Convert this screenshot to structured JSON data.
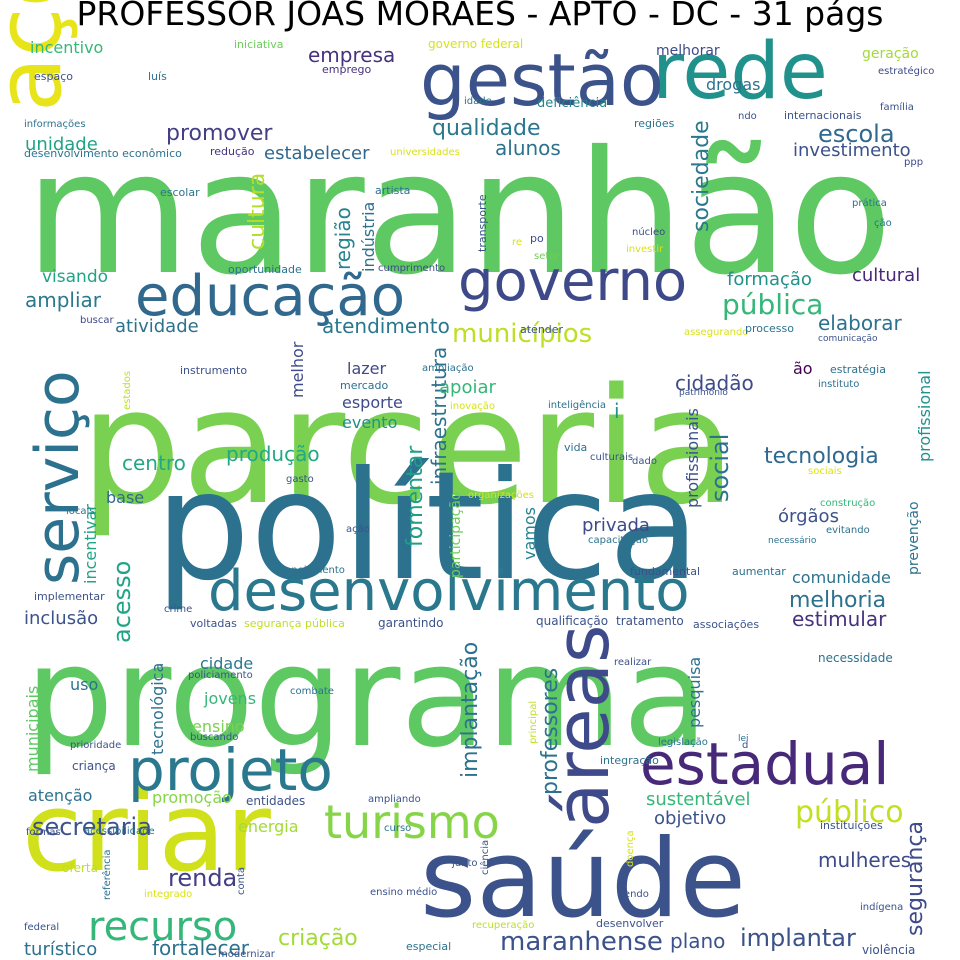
{
  "title": "PROFESSOR JOAS MORAES - APTO - DC - 31 págs",
  "words": [
    {
      "text": "maranhão",
      "color": "#5ec962"
    },
    {
      "text": "parceria",
      "color": "#7ad151"
    },
    {
      "text": "política",
      "color": "#2c728e"
    },
    {
      "text": "programa",
      "color": "#5ec962"
    },
    {
      "text": "saúde",
      "color": "#3b528b"
    },
    {
      "text": "criar",
      "color": "#d0e11c"
    },
    {
      "text": "ações",
      "color": "#e7e419"
    },
    {
      "text": "rede",
      "color": "#21918c"
    },
    {
      "text": "gestão",
      "color": "#3b528b"
    },
    {
      "text": "educação",
      "color": "#31688e"
    },
    {
      "text": "governo",
      "color": "#3e4989"
    },
    {
      "text": "desenvolvimento",
      "color": "#2a788e"
    },
    {
      "text": "serviço",
      "color": "#2c728e"
    },
    {
      "text": "áreas",
      "color": "#3e4a89"
    },
    {
      "text": "projeto",
      "color": "#2a788e"
    },
    {
      "text": "estadual",
      "color": "#482878"
    },
    {
      "text": "turismo",
      "color": "#86d549"
    },
    {
      "text": "recurso",
      "color": "#35b779"
    },
    {
      "text": "público",
      "color": "#c2df23"
    },
    {
      "text": "municípios",
      "color": "#bddf26"
    },
    {
      "text": "pública",
      "color": "#35b779"
    },
    {
      "text": "qualidade",
      "color": "#2a788e"
    },
    {
      "text": "escola",
      "color": "#31688e"
    },
    {
      "text": "promover",
      "color": "#433e85"
    },
    {
      "text": "alunos",
      "color": "#2c728e"
    },
    {
      "text": "empresa",
      "color": "#46327e"
    },
    {
      "text": "melhorar",
      "color": "#3e4a89"
    },
    {
      "text": "drogas",
      "color": "#2c728e"
    },
    {
      "text": "deficiência",
      "color": "#25848e"
    },
    {
      "text": "geração",
      "color": "#a2da37"
    },
    {
      "text": "sociedade",
      "color": "#2a788e"
    },
    {
      "text": "cultura",
      "color": "#b5de2b"
    },
    {
      "text": "região",
      "color": "#25848e"
    },
    {
      "text": "indústria",
      "color": "#2c728e"
    },
    {
      "text": "estabelecer",
      "color": "#31688e"
    },
    {
      "text": "investimento",
      "color": "#3b528b"
    },
    {
      "text": "unidade",
      "color": "#20a486"
    },
    {
      "text": "incentivo",
      "color": "#35b779"
    },
    {
      "text": "visando",
      "color": "#20a486"
    },
    {
      "text": "ampliar",
      "color": "#2a788e"
    },
    {
      "text": "atividade",
      "color": "#2c728e"
    },
    {
      "text": "atendimento",
      "color": "#2a788e"
    },
    {
      "text": "formação",
      "color": "#21918c"
    },
    {
      "text": "cultural",
      "color": "#482878"
    },
    {
      "text": "elaborar",
      "color": "#2c728e"
    },
    {
      "text": "cidadão",
      "color": "#3e4a89"
    },
    {
      "text": "tecnologia",
      "color": "#31688e"
    },
    {
      "text": "social",
      "color": "#2c728e"
    },
    {
      "text": "produção",
      "color": "#22a884"
    },
    {
      "text": "centro",
      "color": "#22a884"
    },
    {
      "text": "fomentar",
      "color": "#1f9e89"
    },
    {
      "text": "infraestrutura",
      "color": "#2c728e"
    },
    {
      "text": "comunidade",
      "color": "#2c728e"
    },
    {
      "text": "melhoria",
      "color": "#2c728e"
    },
    {
      "text": "estimular",
      "color": "#46327e"
    },
    {
      "text": "acesso",
      "color": "#20a486"
    },
    {
      "text": "inclusão",
      "color": "#3b528b"
    },
    {
      "text": "privada",
      "color": "#3e4a89"
    },
    {
      "text": "órgãos",
      "color": "#3b528b"
    },
    {
      "text": "secretaria",
      "color": "#3b528b"
    },
    {
      "text": "renda",
      "color": "#433e85"
    },
    {
      "text": "maranhense",
      "color": "#3b528b"
    },
    {
      "text": "implantar",
      "color": "#3b528b"
    },
    {
      "text": "plano",
      "color": "#3b528b"
    },
    {
      "text": "criação",
      "color": "#a2da37"
    },
    {
      "text": "fortalecer",
      "color": "#2c728e"
    },
    {
      "text": "turístico",
      "color": "#2c728e"
    },
    {
      "text": "mulheres",
      "color": "#3e4a89"
    },
    {
      "text": "segurança",
      "color": "#3e4a89"
    },
    {
      "text": "objetivo",
      "color": "#3b528b"
    },
    {
      "text": "sustentável",
      "color": "#35b779"
    },
    {
      "text": "energia",
      "color": "#a2da37"
    },
    {
      "text": "atenção",
      "color": "#2c728e"
    },
    {
      "text": "promoção",
      "color": "#86d549"
    },
    {
      "text": "jovens",
      "color": "#35b779"
    },
    {
      "text": "cidade",
      "color": "#2a788e"
    },
    {
      "text": "ensino",
      "color": "#7ad151"
    },
    {
      "text": "uso",
      "color": "#2c728e"
    },
    {
      "text": "pesquisa",
      "color": "#2c728e"
    },
    {
      "text": "implantação",
      "color": "#2c728e"
    },
    {
      "text": "professores",
      "color": "#2c728e"
    },
    {
      "text": "base",
      "color": "#31688e"
    },
    {
      "text": "incentivar",
      "color": "#20a486"
    },
    {
      "text": "lazer",
      "color": "#3e4a89"
    },
    {
      "text": "esporte",
      "color": "#3e4a89"
    },
    {
      "text": "evento",
      "color": "#21918c"
    },
    {
      "text": "apoiar",
      "color": "#35b779"
    },
    {
      "text": "vamos",
      "color": "#25848e"
    },
    {
      "text": "profissionais",
      "color": "#3b528b"
    },
    {
      "text": "profissional",
      "color": "#21918c"
    },
    {
      "text": "prevenção",
      "color": "#2c728e"
    },
    {
      "text": "municipais",
      "color": "#5ec962"
    },
    {
      "text": "tecnológica",
      "color": "#2c728e"
    },
    {
      "text": "melhor",
      "color": "#3e4a89"
    },
    {
      "text": "i",
      "color": "#21918c"
    },
    {
      "text": "ão",
      "color": "#440154"
    },
    {
      "text": "participação",
      "color": "#6ccd5a"
    },
    {
      "text": "espaço",
      "color": "#3b528b"
    },
    {
      "text": "luís",
      "color": "#2c728e"
    },
    {
      "text": "iniciativa",
      "color": "#6ccd5a"
    },
    {
      "text": "emprego",
      "color": "#46327e"
    },
    {
      "text": "governo federal",
      "color": "#d8e219"
    },
    {
      "text": "estratégico",
      "color": "#3e4a89"
    },
    {
      "text": "família",
      "color": "#3b528b"
    },
    {
      "text": "internacionais",
      "color": "#3b528b"
    },
    {
      "text": "ndo",
      "color": "#3b528b"
    },
    {
      "text": "idade",
      "color": "#2c728e"
    },
    {
      "text": "regiões",
      "color": "#2c728e"
    },
    {
      "text": "informações",
      "color": "#2c728e"
    },
    {
      "text": "redução",
      "color": "#46327e"
    },
    {
      "text": "desenvolvimento econômico",
      "color": "#2c728e"
    },
    {
      "text": "universidades",
      "color": "#d8e219"
    },
    {
      "text": "ppp",
      "color": "#3e4a89"
    },
    {
      "text": "escolar",
      "color": "#2c728e"
    },
    {
      "text": "artista",
      "color": "#2c728e"
    },
    {
      "text": "prática",
      "color": "#2c728e"
    },
    {
      "text": "ção",
      "color": "#2c728e"
    },
    {
      "text": "transporte",
      "color": "#3b528b"
    },
    {
      "text": "núcleo",
      "color": "#3e4a89"
    },
    {
      "text": "re",
      "color": "#d8e219"
    },
    {
      "text": "po",
      "color": "#3e4a89"
    },
    {
      "text": "setor",
      "color": "#6ccd5a"
    },
    {
      "text": "investir",
      "color": "#d8e219"
    },
    {
      "text": "oportunidade",
      "color": "#2c728e"
    },
    {
      "text": "cumprimento",
      "color": "#3e4a89"
    },
    {
      "text": "buscar",
      "color": "#3e4a89"
    },
    {
      "text": "atender",
      "color": "#3b528b"
    },
    {
      "text": "assegurando",
      "color": "#d8e219"
    },
    {
      "text": "processo",
      "color": "#2c728e"
    },
    {
      "text": "comunicação",
      "color": "#3b528b"
    },
    {
      "text": "instrumento",
      "color": "#3b528b"
    },
    {
      "text": "ampliação",
      "color": "#2c728e"
    },
    {
      "text": "estratégia",
      "color": "#2c728e"
    },
    {
      "text": "instituto",
      "color": "#2c728e"
    },
    {
      "text": "estados",
      "color": "#bddf26"
    },
    {
      "text": "mercado",
      "color": "#2c728e"
    },
    {
      "text": "patrimônio",
      "color": "#3b528b"
    },
    {
      "text": "inovação",
      "color": "#d8e219"
    },
    {
      "text": "inteligência",
      "color": "#2c728e"
    },
    {
      "text": "vida",
      "color": "#2c728e"
    },
    {
      "text": "culturais",
      "color": "#3b528b"
    },
    {
      "text": "dado",
      "color": "#3b528b"
    },
    {
      "text": "sociais",
      "color": "#d8e219"
    },
    {
      "text": "gasto",
      "color": "#3b528b"
    },
    {
      "text": "organizações",
      "color": "#d8e219"
    },
    {
      "text": "locais",
      "color": "#2c728e"
    },
    {
      "text": "construção",
      "color": "#35b779"
    },
    {
      "text": "evitando",
      "color": "#2c728e"
    },
    {
      "text": "ação",
      "color": "#3b528b"
    },
    {
      "text": "capacitação",
      "color": "#2c728e"
    },
    {
      "text": "necessário",
      "color": "#2c728e"
    },
    {
      "text": "planejamento",
      "color": "#2c728e"
    },
    {
      "text": "fundamental",
      "color": "#3b528b"
    },
    {
      "text": "aumentar",
      "color": "#2c728e"
    },
    {
      "text": "implementar",
      "color": "#3b528b"
    },
    {
      "text": "crime",
      "color": "#3b528b"
    },
    {
      "text": "voltadas",
      "color": "#3b528b"
    },
    {
      "text": "segurança pública",
      "color": "#bddf26"
    },
    {
      "text": "garantindo",
      "color": "#3b528b"
    },
    {
      "text": "qualificação",
      "color": "#3b528b"
    },
    {
      "text": "tratamento",
      "color": "#3b528b"
    },
    {
      "text": "associações",
      "color": "#3b528b"
    },
    {
      "text": "policiamento",
      "color": "#3b528b"
    },
    {
      "text": "combate",
      "color": "#2c728e"
    },
    {
      "text": "realizar",
      "color": "#3b528b"
    },
    {
      "text": "necessidade",
      "color": "#2c728e"
    },
    {
      "text": "prioridade",
      "color": "#3b528b"
    },
    {
      "text": "buscando",
      "color": "#3b528b"
    },
    {
      "text": "criança",
      "color": "#3b528b"
    },
    {
      "text": "lei",
      "color": "#2c728e"
    },
    {
      "text": "legislação",
      "color": "#2c728e"
    },
    {
      "text": "d",
      "color": "#3b528b"
    },
    {
      "text": "principal",
      "color": "#bddf26"
    },
    {
      "text": "integração",
      "color": "#2c728e"
    },
    {
      "text": "ampliando",
      "color": "#3b528b"
    },
    {
      "text": "formas",
      "color": "#3b528b"
    },
    {
      "text": "acessibilidade",
      "color": "#2c728e"
    },
    {
      "text": "entidades",
      "color": "#3b528b"
    },
    {
      "text": "curso",
      "color": "#2c728e"
    },
    {
      "text": "instituições",
      "color": "#3b528b"
    },
    {
      "text": "oferta",
      "color": "#bddf26"
    },
    {
      "text": "referência",
      "color": "#2c728e"
    },
    {
      "text": "integrado",
      "color": "#d8e219"
    },
    {
      "text": "conta",
      "color": "#3b528b"
    },
    {
      "text": "junto",
      "color": "#3b528b"
    },
    {
      "text": "doença",
      "color": "#d8e219"
    },
    {
      "text": "ciência",
      "color": "#3b528b"
    },
    {
      "text": "tendo",
      "color": "#3b528b"
    },
    {
      "text": "ensino médio",
      "color": "#3b528b"
    },
    {
      "text": "indígena",
      "color": "#3b528b"
    },
    {
      "text": "federal",
      "color": "#3b528b"
    },
    {
      "text": "especial",
      "color": "#2c728e"
    },
    {
      "text": "recuperação",
      "color": "#bddf26"
    },
    {
      "text": "desenvolver",
      "color": "#3b528b"
    },
    {
      "text": "modernizar",
      "color": "#3b528b"
    },
    {
      "text": "violência",
      "color": "#3b528b"
    }
  ]
}
